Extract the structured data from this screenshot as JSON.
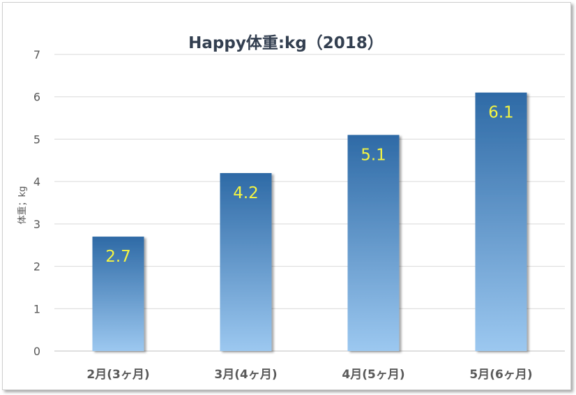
{
  "chart_data": {
    "type": "bar",
    "title": "Happy体重:kg（2018）",
    "xlabel": "",
    "ylabel": "体重；kg",
    "categories": [
      "2月(3ヶ月)",
      "3月(4ヶ月)",
      "4月(5ヶ月)",
      "5月(6ヶ月)"
    ],
    "values": [
      2.7,
      4.2,
      5.1,
      6.1
    ],
    "data_labels": [
      "2.7",
      "4.2",
      "5.1",
      "6.1"
    ],
    "yticks": [
      "0",
      "1",
      "2",
      "3",
      "4",
      "5",
      "6",
      "7"
    ],
    "ylim": [
      0,
      7
    ],
    "grid": true,
    "legend": "none",
    "colors": {
      "bar_top": "#2e6aa6",
      "bar_bottom": "#9cc8f0",
      "data_label": "#f5f542",
      "title": "#333f50",
      "axis_text": "#595959",
      "grid": "#d9d9d9"
    }
  }
}
